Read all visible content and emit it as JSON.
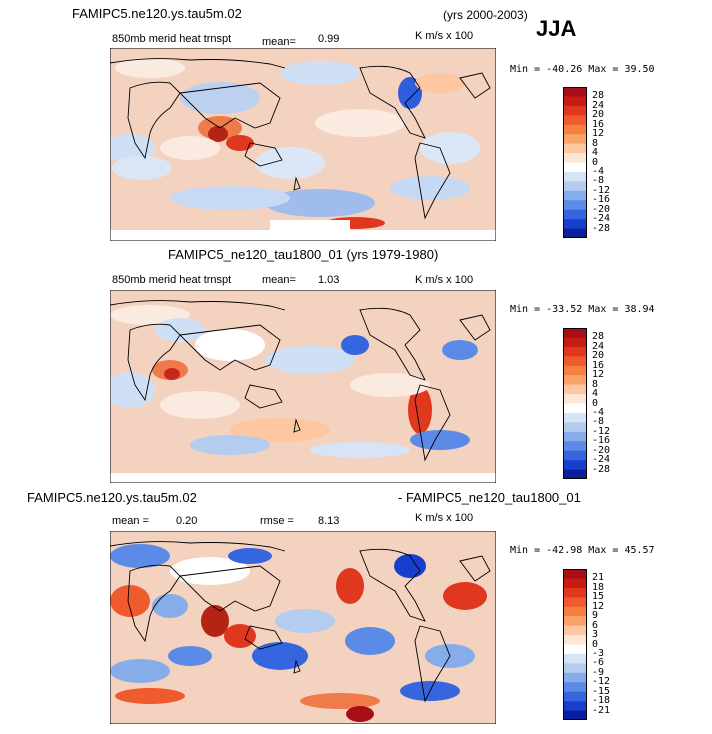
{
  "season": "JJA",
  "panels": [
    {
      "case_title": "FAMIPC5.ne120.ys.tau5m.02",
      "years": "(yrs 2000-2003)",
      "variable": "850mb merid heat trnspt",
      "mean_label": "mean=",
      "mean_value": "0.99",
      "units": "K m/s x 100",
      "min_label": "Min =",
      "min_value": "-40.26",
      "max_label": "Max =",
      "max_value": "39.50"
    },
    {
      "case_title": "FAMIPC5_ne120_tau1800_01 (yrs 1979-1980)",
      "variable": "850mb merid heat trnspt",
      "mean_label": "mean=",
      "mean_value": "1.03",
      "units": "K m/s x 100",
      "min_label": "Min =",
      "min_value": "-33.52",
      "max_label": "Max =",
      "max_value": "38.94"
    },
    {
      "case_title_left": "FAMIPC5.ne120.ys.tau5m.02",
      "case_title_right": "- FAMIPC5_ne120_tau1800_01",
      "mean_label": "mean =",
      "mean_value": "0.20",
      "rmse_label": "rmse =",
      "rmse_value": "8.13",
      "units": "K m/s x 100",
      "min_label": "Min =",
      "min_value": "-42.98",
      "max_label": "Max =",
      "max_value": "45.57"
    }
  ],
  "chart_data": [
    {
      "type": "heatmap",
      "title": "850mb merid heat trnspt",
      "subtitle": "FAMIPC5.ne120.ys.tau5m.02 (yrs 2000-2003) JJA",
      "units": "K m/s x 100",
      "mean": 0.99,
      "min": -40.26,
      "max": 39.5,
      "colorbar_levels": [
        28,
        24,
        20,
        16,
        12,
        8,
        4,
        0,
        -4,
        -8,
        -12,
        -16,
        -20,
        -24,
        -28
      ],
      "colorbar_colors": [
        "#a50f15",
        "#c81b12",
        "#e0381e",
        "#ef5b2c",
        "#f7803e",
        "#fba46a",
        "#fcc7a1",
        "#fde6d5",
        "#ffffff",
        "#d7e4f5",
        "#b4ccf0",
        "#86acea",
        "#5b8be6",
        "#3566df",
        "#173fcb",
        "#0a1f9e"
      ]
    },
    {
      "type": "heatmap",
      "title": "850mb merid heat trnspt",
      "subtitle": "FAMIPC5_ne120_tau1800_01 (yrs 1979-1980)",
      "units": "K m/s x 100",
      "mean": 1.03,
      "min": -33.52,
      "max": 38.94,
      "colorbar_levels": [
        28,
        24,
        20,
        16,
        12,
        8,
        4,
        0,
        -4,
        -8,
        -12,
        -16,
        -20,
        -24,
        -28
      ],
      "colorbar_colors": [
        "#a50f15",
        "#c81b12",
        "#e0381e",
        "#ef5b2c",
        "#f7803e",
        "#fba46a",
        "#fcc7a1",
        "#fde6d5",
        "#ffffff",
        "#d7e4f5",
        "#b4ccf0",
        "#86acea",
        "#5b8be6",
        "#3566df",
        "#173fcb",
        "#0a1f9e"
      ]
    },
    {
      "type": "heatmap",
      "title": "FAMIPC5.ne120.ys.tau5m.02 - FAMIPC5_ne120_tau1800_01",
      "units": "K m/s x 100",
      "mean": 0.2,
      "rmse": 8.13,
      "min": -42.98,
      "max": 45.57,
      "colorbar_levels": [
        21,
        18,
        15,
        12,
        9,
        6,
        3,
        0,
        -3,
        -6,
        -9,
        -12,
        -15,
        -18,
        -21
      ],
      "colorbar_colors": [
        "#a50f15",
        "#c81b12",
        "#e0381e",
        "#ef5b2c",
        "#f7803e",
        "#fba46a",
        "#fcc7a1",
        "#fde6d5",
        "#ffffff",
        "#d7e4f5",
        "#b4ccf0",
        "#86acea",
        "#5b8be6",
        "#3566df",
        "#173fcb",
        "#0a1f9e"
      ]
    }
  ]
}
